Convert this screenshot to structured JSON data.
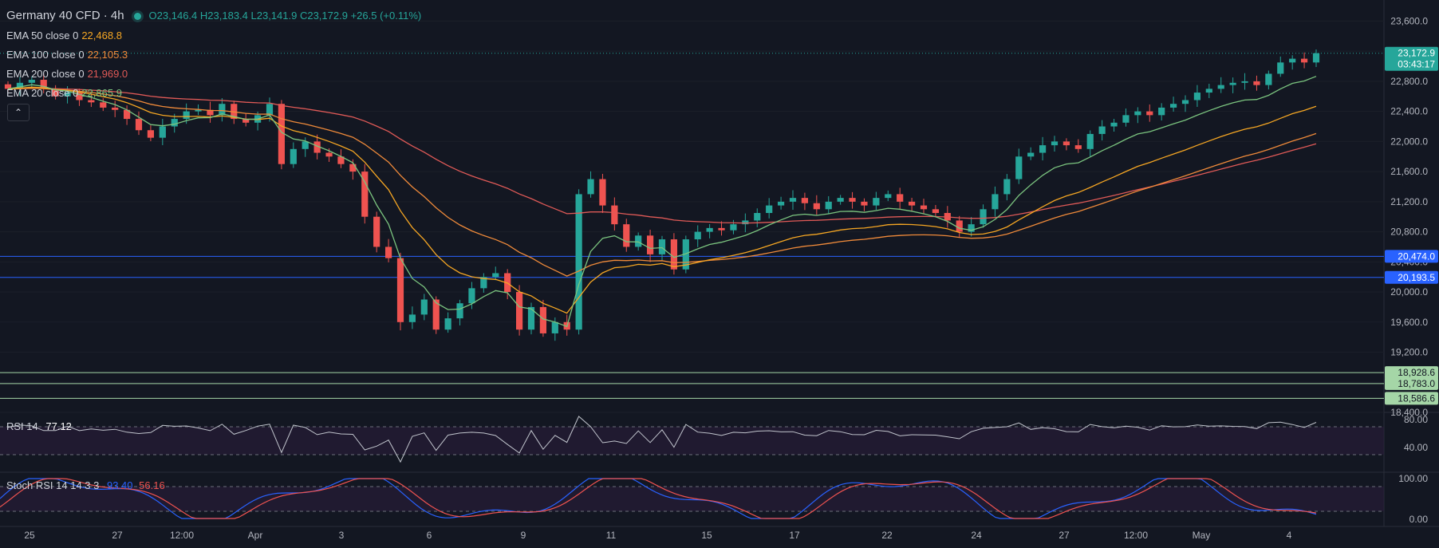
{
  "header": {
    "symbol": "Germany 40 CFD · 4h",
    "o": "23,146.4",
    "h": "23,183.4",
    "l": "23,141.9",
    "c": "23,172.9",
    "change": "+26.5 (+0.11%)"
  },
  "indicators": [
    {
      "name": "EMA 50 close 0",
      "value": "22,468.8",
      "color": "#f5a623"
    },
    {
      "name": "EMA 100 close 0",
      "value": "22,105.3",
      "color": "#ef8a3a"
    },
    {
      "name": "EMA 200 close 0",
      "value": "21,969.0",
      "color": "#e05a57"
    },
    {
      "name": "EMA 20 close 0",
      "value": "22,865.9",
      "color": "#7bc47f"
    }
  ],
  "collapse_icon": "chevron-up-icon",
  "price_axis": {
    "ticks": [
      "23,600.0",
      "23,200.0",
      "22,800.0",
      "22,400.0",
      "22,000.0",
      "21,600.0",
      "21,200.0",
      "20,800.0",
      "20,400.0",
      "20,000.0",
      "19,600.0",
      "19,200.0",
      "18,800.0",
      "18,400.0"
    ],
    "last_price": "23,172.9",
    "countdown": "03:43:17"
  },
  "horizontal_levels": [
    {
      "label": "20,474.0",
      "value": 20474.0,
      "color": "#2962ff"
    },
    {
      "label": "20,193.5",
      "value": 20193.5,
      "color": "#2962ff"
    },
    {
      "label": "18,928.6",
      "value": 18928.6,
      "color": "#a5d6a7"
    },
    {
      "label": "18,783.0",
      "value": 18783.0,
      "color": "#a5d6a7"
    },
    {
      "label": "18,586.6",
      "value": 18586.6,
      "color": "#a5d6a7"
    }
  ],
  "rsi": {
    "label": "RSI 14",
    "value": "77.12",
    "ticks": [
      "80.00",
      "40.00"
    ]
  },
  "stoch": {
    "label": "Stoch RSI 14 14 3 3",
    "k": "93.40",
    "d": "56.16",
    "ticks": [
      "100.00",
      "0.00"
    ]
  },
  "time_axis": [
    "25",
    "27",
    "12:00",
    "Apr",
    "3",
    "6",
    "9",
    "11",
    "15",
    "17",
    "22",
    "24",
    "27",
    "12:00",
    "May",
    "4"
  ],
  "colors": {
    "up": "#26a69a",
    "down": "#ef5350",
    "background": "#131722",
    "grid": "#1e222d"
  },
  "chart_data": {
    "type": "candlestick",
    "series": [
      {
        "name": "price",
        "values": [
          22700,
          22780,
          22820,
          22700,
          22600,
          22650,
          22550,
          22520,
          22450,
          22420,
          22300,
          22150,
          22050,
          22200,
          22300,
          22400,
          22420,
          22350,
          22500,
          22300,
          22250,
          22350,
          22500,
          21700,
          21900,
          22000,
          21850,
          21800,
          21700,
          21600,
          21000,
          20600,
          20450,
          19600,
          19700,
          19900,
          19500,
          19650,
          19850,
          20050,
          20200,
          20250,
          20000,
          19500,
          19800,
          19450,
          19600,
          19500,
          21300,
          21500,
          21150,
          20900,
          20600,
          20750,
          20500,
          20700,
          20300,
          20700,
          20800,
          20850,
          20820,
          20900,
          20950,
          21050,
          21150,
          21200,
          21250,
          21180,
          21100,
          21200,
          21250,
          21200,
          21150,
          21250,
          21300,
          21200,
          21150,
          21100,
          21050,
          20950,
          20800,
          20900,
          21100,
          21300,
          21500,
          21800,
          21850,
          21950,
          22000,
          21950,
          21900,
          22100,
          22200,
          22250,
          22350,
          22400,
          22350,
          22450,
          22500,
          22550,
          22650,
          22700,
          22750,
          22780,
          22800,
          22750,
          22900,
          23050,
          23100,
          23050,
          23172.9
        ]
      }
    ],
    "ema20_end": 22865.9,
    "ema50_end": 22468.8,
    "ema100_end": 22105.3,
    "ema200_end": 21969.0,
    "ylim": [
      18400,
      23700
    ]
  }
}
